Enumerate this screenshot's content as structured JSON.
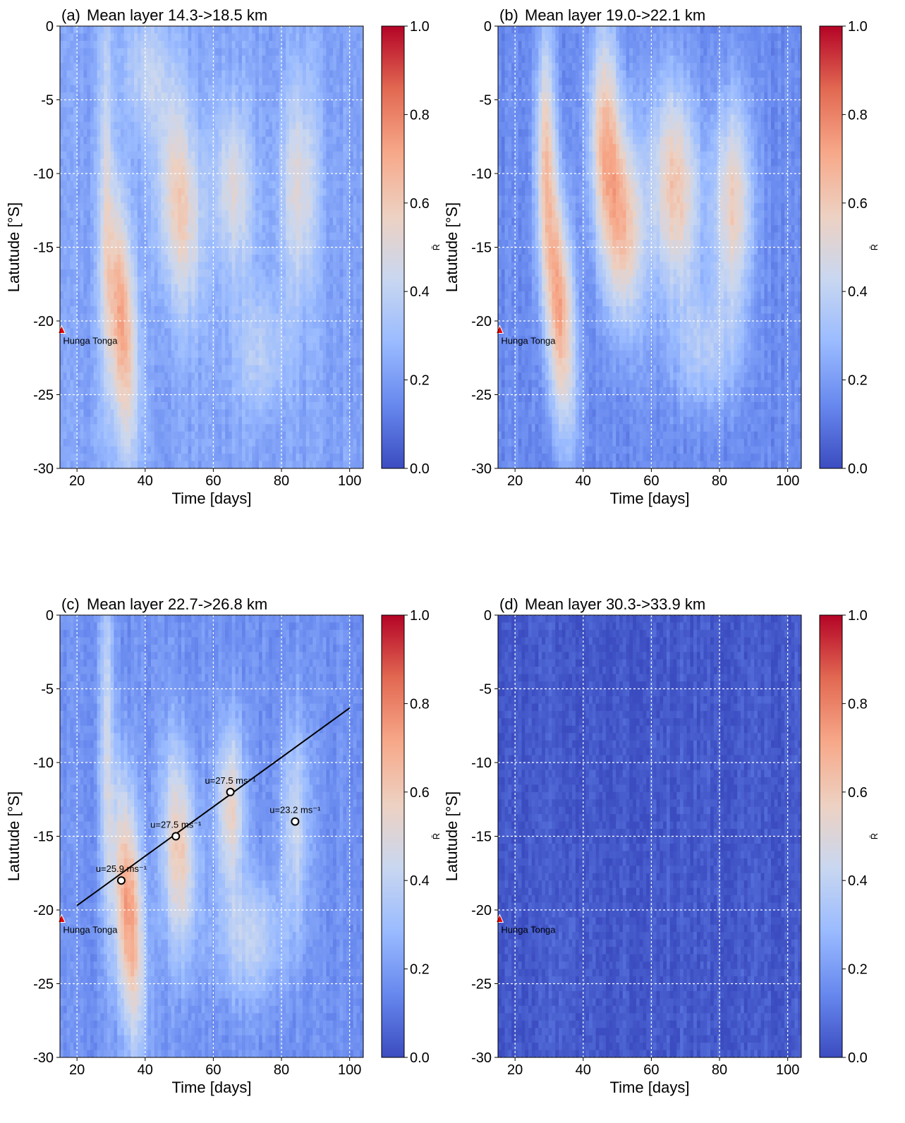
{
  "colormap": {
    "name": "coolwarm",
    "stops": [
      "#3b4cc0",
      "#6788ee",
      "#9abbff",
      "#c9d7f0",
      "#edd1c2",
      "#f7a889",
      "#e26952",
      "#b40426"
    ]
  },
  "chart_data": [
    {
      "type": "heatmap",
      "panel": "(a)",
      "title": "Mean layer 14.3->18.5 km",
      "xlabel": "Time [days]",
      "ylabel": "Latutude [°S]",
      "colorbar_label": "R̄",
      "xlim": [
        15,
        104
      ],
      "ylim": [
        -30,
        0
      ],
      "xticks": [
        20,
        40,
        60,
        80,
        100
      ],
      "yticks": [
        0,
        -5,
        -10,
        -15,
        -20,
        -25,
        -30
      ],
      "colorbar_ticks": [
        "1.0",
        "0.8",
        "0.6",
        "0.4",
        "0.2",
        "0.0"
      ],
      "clim": [
        0,
        1
      ],
      "grid": true,
      "background": 0.22,
      "features": [
        {
          "t0": 33,
          "lat0": -20,
          "slope": -0.2,
          "sigma_t": 3.0,
          "sigma_lat": 6,
          "value": 0.72
        },
        {
          "t0": 28.5,
          "lat0": -10,
          "slope": 0,
          "sigma_t": 1.5,
          "sigma_lat": 12,
          "value": 0.42
        },
        {
          "t0": 50,
          "lat0": -12,
          "slope": -0.2,
          "sigma_t": 4.5,
          "sigma_lat": 5,
          "value": 0.6
        },
        {
          "t0": 66,
          "lat0": -11,
          "slope": -0.1,
          "sigma_t": 4,
          "sigma_lat": 4,
          "value": 0.5
        },
        {
          "t0": 85,
          "lat0": -11,
          "slope": 0,
          "sigma_t": 4,
          "sigma_lat": 5,
          "value": 0.5
        },
        {
          "t0": 74,
          "lat0": -22,
          "slope": 0,
          "sigma_t": 6,
          "sigma_lat": 3,
          "value": 0.38
        },
        {
          "t0": 41,
          "lat0": -3,
          "slope": 0,
          "sigma_t": 5,
          "sigma_lat": 3,
          "value": 0.4
        }
      ],
      "marker": {
        "label": "Hunga Tonga",
        "x": 15.5,
        "y": -20.6,
        "color": "#e60000"
      }
    },
    {
      "type": "heatmap",
      "panel": "(b)",
      "title": "Mean layer 19.0->22.1 km",
      "xlabel": "Time [days]",
      "ylabel": "Latutude [°S]",
      "colorbar_label": "R̄",
      "xlim": [
        15,
        104
      ],
      "ylim": [
        -30,
        0
      ],
      "xticks": [
        20,
        40,
        60,
        80,
        100
      ],
      "yticks": [
        0,
        -5,
        -10,
        -15,
        -20,
        -25,
        -30
      ],
      "colorbar_ticks": [
        "1.0",
        "0.8",
        "0.6",
        "0.4",
        "0.2",
        "0.0"
      ],
      "clim": [
        0,
        1
      ],
      "grid": true,
      "background": 0.15,
      "features": [
        {
          "t0": 33,
          "lat0": -19,
          "slope": -0.2,
          "sigma_t": 3.0,
          "sigma_lat": 6,
          "value": 0.72
        },
        {
          "t0": 29,
          "lat0": -8,
          "slope": 0,
          "sigma_t": 2,
          "sigma_lat": 6,
          "value": 0.55
        },
        {
          "t0": 51,
          "lat0": -13,
          "slope": -0.2,
          "sigma_t": 4.5,
          "sigma_lat": 5,
          "value": 0.68
        },
        {
          "t0": 46,
          "lat0": -6,
          "slope": 0,
          "sigma_t": 3,
          "sigma_lat": 5,
          "value": 0.5
        },
        {
          "t0": 67,
          "lat0": -11,
          "slope": -0.1,
          "sigma_t": 5,
          "sigma_lat": 5,
          "value": 0.62
        },
        {
          "t0": 84,
          "lat0": -12,
          "slope": 0,
          "sigma_t": 4,
          "sigma_lat": 5,
          "value": 0.58
        },
        {
          "t0": 76,
          "lat0": -22,
          "slope": 0,
          "sigma_t": 7,
          "sigma_lat": 3,
          "value": 0.35
        }
      ],
      "marker": {
        "label": "Hunga Tonga",
        "x": 15.5,
        "y": -20.6,
        "color": "#e60000"
      }
    },
    {
      "type": "heatmap",
      "panel": "(c)",
      "title": "Mean layer 22.7->26.8 km",
      "xlabel": "Time [days]",
      "ylabel": "Latutude [°S]",
      "colorbar_label": "R̄",
      "xlim": [
        15,
        104
      ],
      "ylim": [
        -30,
        0
      ],
      "xticks": [
        20,
        40,
        60,
        80,
        100
      ],
      "yticks": [
        0,
        -5,
        -10,
        -15,
        -20,
        -25,
        -30
      ],
      "colorbar_ticks": [
        "1.0",
        "0.8",
        "0.6",
        "0.4",
        "0.2",
        "0.0"
      ],
      "clim": [
        0,
        1
      ],
      "grid": true,
      "background": 0.17,
      "features": [
        {
          "t0": 35,
          "lat0": -20,
          "slope": -0.2,
          "sigma_t": 3.0,
          "sigma_lat": 6,
          "value": 0.75
        },
        {
          "t0": 28.5,
          "lat0": -8,
          "slope": 0,
          "sigma_t": 1.5,
          "sigma_lat": 10,
          "value": 0.42
        },
        {
          "t0": 50,
          "lat0": -16,
          "slope": -0.1,
          "sigma_t": 3.5,
          "sigma_lat": 5,
          "value": 0.6
        },
        {
          "t0": 65,
          "lat0": -13,
          "slope": 0,
          "sigma_t": 3,
          "sigma_lat": 4,
          "value": 0.55
        },
        {
          "t0": 84,
          "lat0": -14,
          "slope": 0,
          "sigma_t": 3,
          "sigma_lat": 5,
          "value": 0.42
        },
        {
          "t0": 71,
          "lat0": -22,
          "slope": 0,
          "sigma_t": 7,
          "sigma_lat": 3,
          "value": 0.4
        }
      ],
      "marker": {
        "label": "Hunga Tonga",
        "x": 15.5,
        "y": -20.6,
        "color": "#e60000"
      },
      "fit_line": {
        "x": [
          20,
          100
        ],
        "y": [
          -19.7,
          -6.3
        ]
      },
      "points": [
        {
          "x": 33,
          "y": -18,
          "label": "u=25.9 ms⁻¹"
        },
        {
          "x": 49,
          "y": -15,
          "label": "u=27.5 ms⁻¹"
        },
        {
          "x": 65,
          "y": -12,
          "label": "u=27.5 ms⁻¹"
        },
        {
          "x": 84,
          "y": -14,
          "label": "u=23.2 ms⁻¹"
        }
      ]
    },
    {
      "type": "heatmap",
      "panel": "(d)",
      "title": "Mean layer 30.3->33.9 km",
      "xlabel": "Time [days]",
      "ylabel": "Latutude [°S]",
      "colorbar_label": "R̄",
      "xlim": [
        15,
        104
      ],
      "ylim": [
        -30,
        0
      ],
      "xticks": [
        20,
        40,
        60,
        80,
        100
      ],
      "yticks": [
        0,
        -5,
        -10,
        -15,
        -20,
        -25,
        -30
      ],
      "colorbar_ticks": [
        "1.0",
        "0.8",
        "0.6",
        "0.4",
        "0.2",
        "0.0"
      ],
      "clim": [
        0,
        1
      ],
      "grid": true,
      "background": 0.03,
      "features": [
        {
          "t0": 35,
          "lat0": -24,
          "slope": 0,
          "sigma_t": 3,
          "sigma_lat": 4,
          "value": 0.06
        }
      ],
      "marker": {
        "label": "Hunga Tonga",
        "x": 15.5,
        "y": -20.6,
        "color": "#e60000"
      }
    }
  ]
}
